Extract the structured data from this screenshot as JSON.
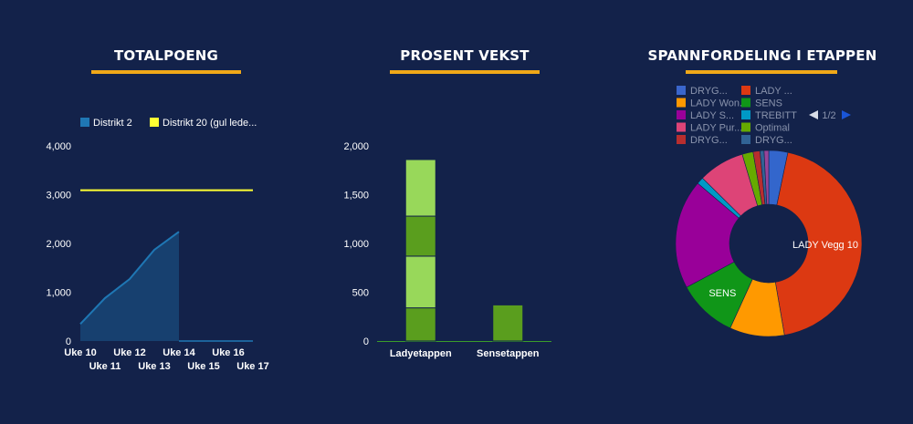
{
  "panels": {
    "total": {
      "title": "TOTALPOENG"
    },
    "growth": {
      "title": "PROSENT VEKST"
    },
    "distribution": {
      "title": "SPANNFORDELING I ETAPPEN"
    }
  },
  "pie_nav": {
    "page_text": "1/2",
    "prev_icon": "triangle-left-icon",
    "next_icon": "triangle-right-icon"
  },
  "chart_data": [
    {
      "type": "area",
      "title": "TOTALPOENG",
      "categories": [
        "Uke 10",
        "Uke 11",
        "Uke 12",
        "Uke 13",
        "Uke 14",
        "Uke 15",
        "Uke 16",
        "Uke 17"
      ],
      "y_ticks": [
        "0",
        "1,000",
        "2,000",
        "3,000",
        "4,000"
      ],
      "ylim": [
        0,
        4000
      ],
      "legend_position": "top",
      "series": [
        {
          "name": "Distrikt 2",
          "color": "#1f77b4",
          "values": [
            350,
            880,
            1270,
            1870,
            2240,
            null,
            null,
            null
          ]
        },
        {
          "name": "Distrikt 20 (gul lede...",
          "color": "#ffff33",
          "values": [
            3090,
            3090,
            3090,
            3090,
            3090,
            3090,
            3090,
            3090
          ]
        }
      ]
    },
    {
      "type": "bar",
      "stacked": true,
      "title": "PROSENT VEKST",
      "categories": [
        "Ladyetappen",
        "Sensetappen"
      ],
      "y_ticks": [
        "0",
        "500",
        "1,000",
        "1,500",
        "2,000"
      ],
      "ylim": [
        0,
        2000
      ],
      "segments": [
        {
          "category": "Ladyetappen",
          "value": 340,
          "color": "#5a9e1e"
        },
        {
          "category": "Ladyetappen",
          "value": 530,
          "color": "#98d85a"
        },
        {
          "category": "Ladyetappen",
          "value": 410,
          "color": "#5a9e1e"
        },
        {
          "category": "Ladyetappen",
          "value": 580,
          "color": "#98d85a"
        },
        {
          "category": "Sensetappen",
          "value": 370,
          "color": "#5a9e1e"
        }
      ]
    },
    {
      "type": "pie",
      "donut": true,
      "title": "SPANNFORDELING I ETAPPEN",
      "legend_position": "top",
      "legend": [
        {
          "label": "DRYG...",
          "color": "#3a66cc"
        },
        {
          "label": "LADY ...",
          "color": "#dc3912"
        },
        {
          "label": "LADY Won...",
          "color": "#ff9900"
        },
        {
          "label": "SENS",
          "color": "#109618"
        },
        {
          "label": "LADY S...",
          "color": "#990099"
        },
        {
          "label": "TREBITT",
          "color": "#0099c6"
        },
        {
          "label": "LADY Pur...",
          "color": "#dd4477"
        },
        {
          "label": "Optimal",
          "color": "#66aa00"
        },
        {
          "label": "DRYG...",
          "color": "#b82e2e"
        },
        {
          "label": "DRYG...",
          "color": "#316395"
        }
      ],
      "slices": [
        {
          "label": "DRYG...",
          "value": 3.3,
          "color": "#3366cc"
        },
        {
          "label": "LADY Vegg 10",
          "value": 44.0,
          "color": "#dc3912",
          "shown_label": "LADY Vegg 10"
        },
        {
          "label": "LADY Won...",
          "value": 9.5,
          "color": "#ff9900"
        },
        {
          "label": "SENS",
          "value": 10.4,
          "color": "#109618",
          "shown_label": "SENS"
        },
        {
          "label": "LADY S...",
          "value": 19.0,
          "color": "#990099"
        },
        {
          "label": "TREBITT",
          "value": 1.2,
          "color": "#0099c6"
        },
        {
          "label": "LADY Pur...",
          "value": 8.0,
          "color": "#dd4477"
        },
        {
          "label": "Optimal",
          "value": 1.9,
          "color": "#66aa00"
        },
        {
          "label": "DRYG...",
          "value": 1.2,
          "color": "#b82e2e"
        },
        {
          "label": "DRYG...",
          "value": 0.7,
          "color": "#316395"
        },
        {
          "label": "",
          "value": 0.8,
          "color": "#994499"
        }
      ]
    }
  ]
}
